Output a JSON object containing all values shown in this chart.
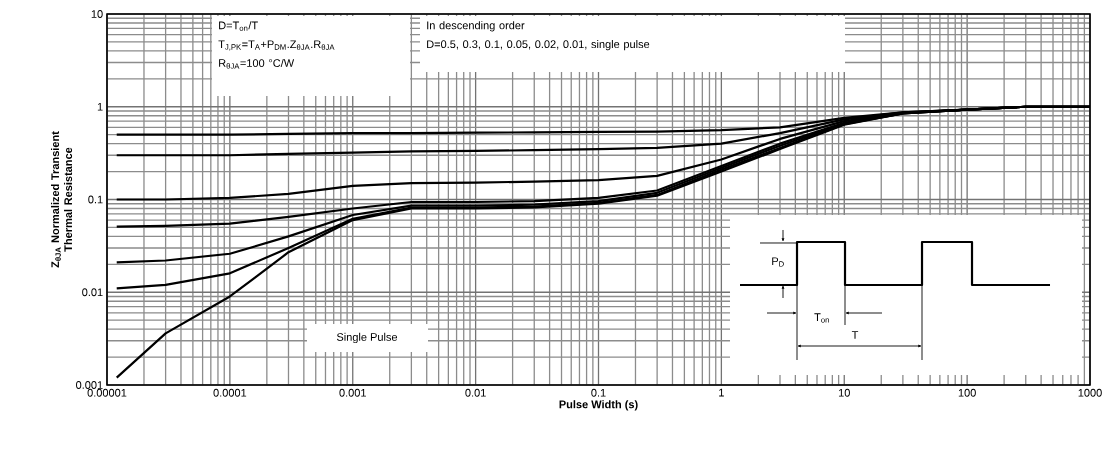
{
  "chart_data": {
    "type": "line",
    "xlabel": "Pulse Width (s)",
    "ylabel": "Z$_{θJA}$ Normalized Transient Thermal Resistance",
    "x": [
      1.2e-05,
      3e-05,
      0.0001,
      0.0003,
      0.001,
      0.003,
      0.01,
      0.03,
      0.1,
      0.3,
      1,
      3,
      10,
      30,
      100,
      300,
      1000
    ],
    "series": [
      {
        "color": "#000000",
        "values": [
          0.5,
          0.5,
          0.5,
          0.51,
          0.52,
          0.52,
          0.525,
          0.53,
          0.535,
          0.54,
          0.56,
          0.6,
          0.76,
          0.87,
          0.93,
          1.0,
          1.0
        ]
      },
      {
        "color": "#000000",
        "values": [
          0.3,
          0.3,
          0.3,
          0.31,
          0.32,
          0.33,
          0.335,
          0.34,
          0.35,
          0.36,
          0.4,
          0.52,
          0.73,
          0.87,
          0.93,
          1.0,
          1.0
        ]
      },
      {
        "color": "#000000",
        "values": [
          0.1,
          0.1,
          0.104,
          0.115,
          0.14,
          0.15,
          0.152,
          0.156,
          0.162,
          0.18,
          0.27,
          0.45,
          0.7,
          0.86,
          0.93,
          1.0,
          1.0
        ]
      },
      {
        "color": "#000000",
        "values": [
          0.051,
          0.052,
          0.055,
          0.065,
          0.08,
          0.094,
          0.094,
          0.096,
          0.104,
          0.125,
          0.23,
          0.4,
          0.67,
          0.86,
          0.93,
          1.0,
          1.0
        ]
      },
      {
        "color": "#000000",
        "values": [
          0.021,
          0.022,
          0.026,
          0.04,
          0.068,
          0.086,
          0.086,
          0.088,
          0.096,
          0.118,
          0.22,
          0.38,
          0.66,
          0.85,
          0.93,
          1.0,
          1.0
        ]
      },
      {
        "color": "#000000",
        "values": [
          0.011,
          0.012,
          0.016,
          0.03,
          0.062,
          0.082,
          0.082,
          0.084,
          0.092,
          0.112,
          0.21,
          0.36,
          0.65,
          0.85,
          0.93,
          1.0,
          1.0
        ]
      },
      {
        "color": "#000000",
        "values": [
          0.0012,
          0.0036,
          0.009,
          0.027,
          0.06,
          0.08,
          0.08,
          0.082,
          0.09,
          0.11,
          0.2,
          0.35,
          0.64,
          0.85,
          0.93,
          1.0,
          1.0
        ]
      }
    ],
    "xlim": [
      1e-05,
      1000
    ],
    "ylim": [
      0.001,
      10
    ],
    "xticks": [
      {
        "value": 1e-05,
        "label": "0.00001"
      },
      {
        "value": 0.0001,
        "label": "0.0001"
      },
      {
        "value": 0.001,
        "label": "0.001"
      },
      {
        "value": 0.01,
        "label": "0.01"
      },
      {
        "value": 0.1,
        "label": "0.1"
      },
      {
        "value": 1,
        "label": "1"
      },
      {
        "value": 10,
        "label": "10"
      },
      {
        "value": 100,
        "label": "100"
      },
      {
        "value": 1000,
        "label": "1000"
      }
    ],
    "yticks": [
      {
        "value": 0.001,
        "label": "0.001"
      },
      {
        "value": 0.01,
        "label": "0.01"
      },
      {
        "value": 0.1,
        "label": "0.1"
      },
      {
        "value": 1,
        "label": "1"
      },
      {
        "value": 10,
        "label": "10"
      }
    ],
    "log": "xy",
    "grid": true,
    "annotations": [
      "D=T$_{on}$/T",
      "T$_{J,PK}$=T$_{A}$+P$_{DM}$.Z$_{θJA}$.R$_{θJA}$",
      "R$_{θJA}$=100 °C/W",
      "In descending order",
      "D=0.5, 0.3, 0.1, 0.05, 0.02, 0.01, single pulse",
      "Single Pulse",
      "P$_{D}$",
      "T$_{on}$",
      "T"
    ]
  }
}
